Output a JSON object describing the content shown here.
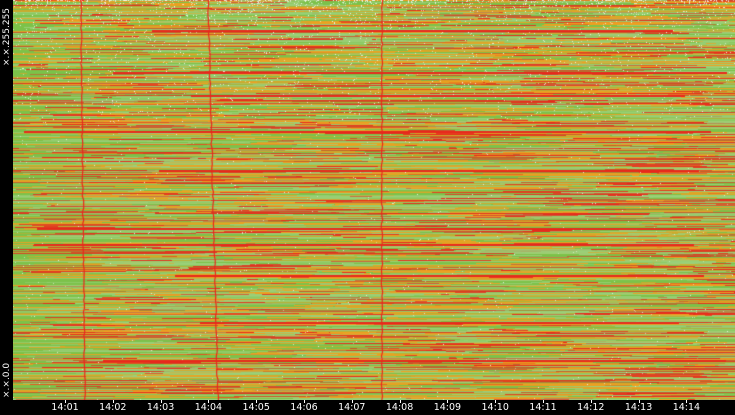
{
  "y_axis": {
    "top_label": "×.×.255.255",
    "bottom_label": "×.×.0.0"
  },
  "x_axis": {
    "ticks": [
      "14:01",
      "14:02",
      "14:03",
      "14:04",
      "14:05",
      "14:06",
      "14:07",
      "14:08",
      "14:09",
      "14:10",
      "14:11",
      "14:12",
      "14:13",
      "14:14"
    ]
  },
  "colors": {
    "background": "#000000",
    "base_green": "#7cc24a",
    "light_green": "#9bd07a",
    "orange": "#f0a020",
    "red": "#e8281c",
    "white_noise": "#f4f8f0"
  },
  "chart_data": {
    "type": "heatmap",
    "title": "",
    "xlabel": "",
    "ylabel": "",
    "x_range": [
      "14:01",
      "14:14"
    ],
    "y_range": [
      "×.×.0.0",
      "×.×.255.255"
    ],
    "x_ticks": [
      "14:01",
      "14:02",
      "14:03",
      "14:04",
      "14:05",
      "14:06",
      "14:07",
      "14:08",
      "14:09",
      "14:10",
      "14:11",
      "14:12",
      "14:13",
      "14:14"
    ],
    "y_ticks": [
      "×.×.0.0",
      "×.×.255.255"
    ],
    "grid": false,
    "legend": "none"
  }
}
